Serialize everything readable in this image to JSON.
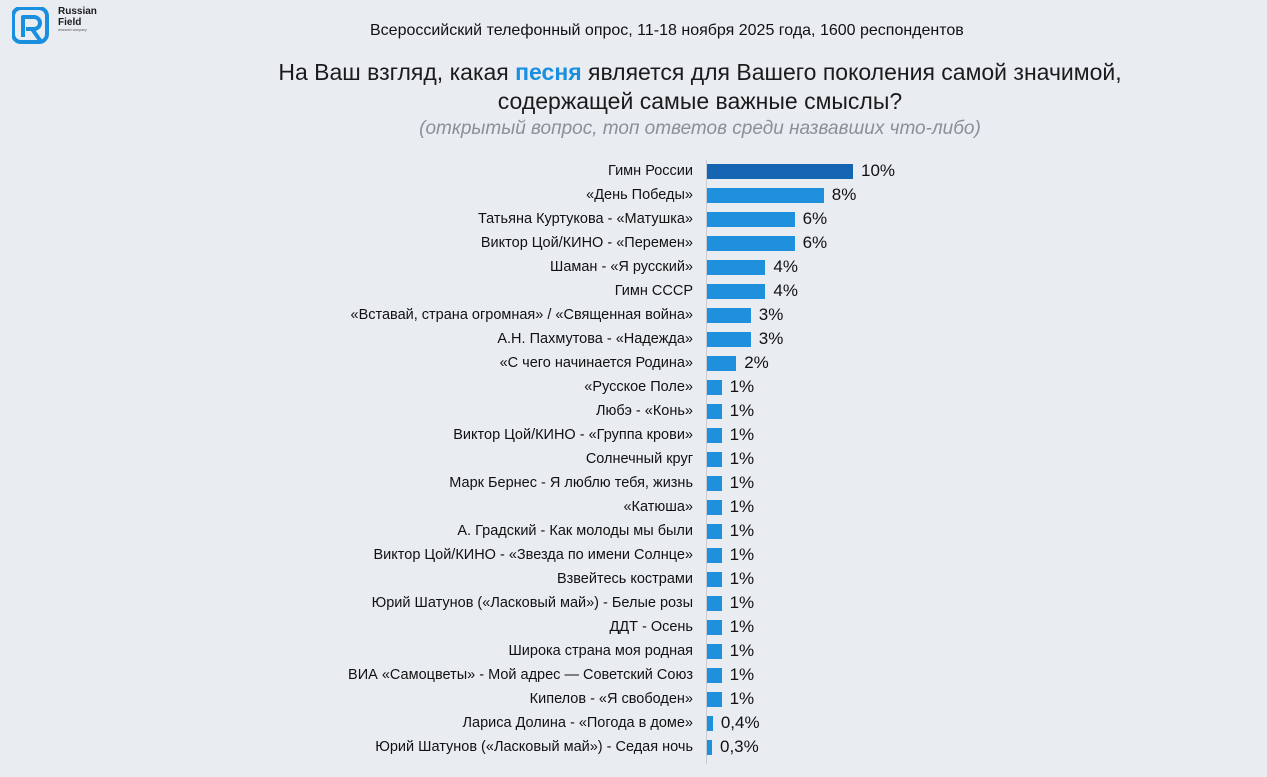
{
  "brand": {
    "name_line1": "Russian",
    "name_line2": "Field",
    "tagline": "research company"
  },
  "survey_info": "Всероссийский телефонный опрос, 11-18 ноября 2025 года, 1600 респондентов",
  "chart_data": {
    "type": "bar",
    "orientation": "horizontal",
    "title_parts": [
      "На Ваш взгляд, какая ",
      "песня",
      " является для Вашего поколения самой значимой,",
      "содержащей самые важные смыслы?"
    ],
    "subtitle": "(открытый вопрос, топ ответов среди назвавших что-либо)",
    "colors": {
      "bar": "#1e90dc",
      "bar_top": "#1565b3",
      "accent_text": "#1a8fdf"
    },
    "categories": [
      "Гимн России",
      "«День Победы»",
      "Татьяна Куртукова - «Матушка»",
      "Виктор Цой/КИНО - «Перемен»",
      "Шаман - «Я русский»",
      "Гимн СССР",
      "«Вставай, страна огромная» / «Священная война»",
      "А.Н. Пахмутова - «Надежда»",
      "«С чего начинается Родина»",
      "«Русское Поле»",
      "Любэ - «Конь»",
      "Виктор Цой/КИНО - «Группа крови»",
      "Солнечный круг",
      "Марк Бернес - Я люблю тебя, жизнь",
      "«Катюша»",
      "А. Градский - Как молоды мы были",
      "Виктор Цой/КИНО - «Звезда по имени Солнце»",
      "Взвейтесь кострами",
      "Юрий Шатунов («Ласковый май») - Белые розы",
      "ДДТ - Осень",
      "Широка страна моя родная",
      "ВИА «Самоцветы» - Мой адрес — Советский Союз",
      "Кипелов - «Я свободен»",
      "Лариса Долина - «Погода в доме»",
      "Юрий Шатунов («Ласковый май») - Седая ночь"
    ],
    "values": [
      10,
      8,
      6,
      6,
      4,
      4,
      3,
      3,
      2,
      1,
      1,
      1,
      1,
      1,
      1,
      1,
      1,
      1,
      1,
      1,
      1,
      1,
      1,
      0.4,
      0.3
    ],
    "value_labels": [
      "10%",
      "8%",
      "6%",
      "6%",
      "4%",
      "4%",
      "3%",
      "3%",
      "2%",
      "1%",
      "1%",
      "1%",
      "1%",
      "1%",
      "1%",
      "1%",
      "1%",
      "1%",
      "1%",
      "1%",
      "1%",
      "1%",
      "1%",
      "0,4%",
      "0,3%"
    ],
    "xlim": [
      0,
      10
    ]
  }
}
